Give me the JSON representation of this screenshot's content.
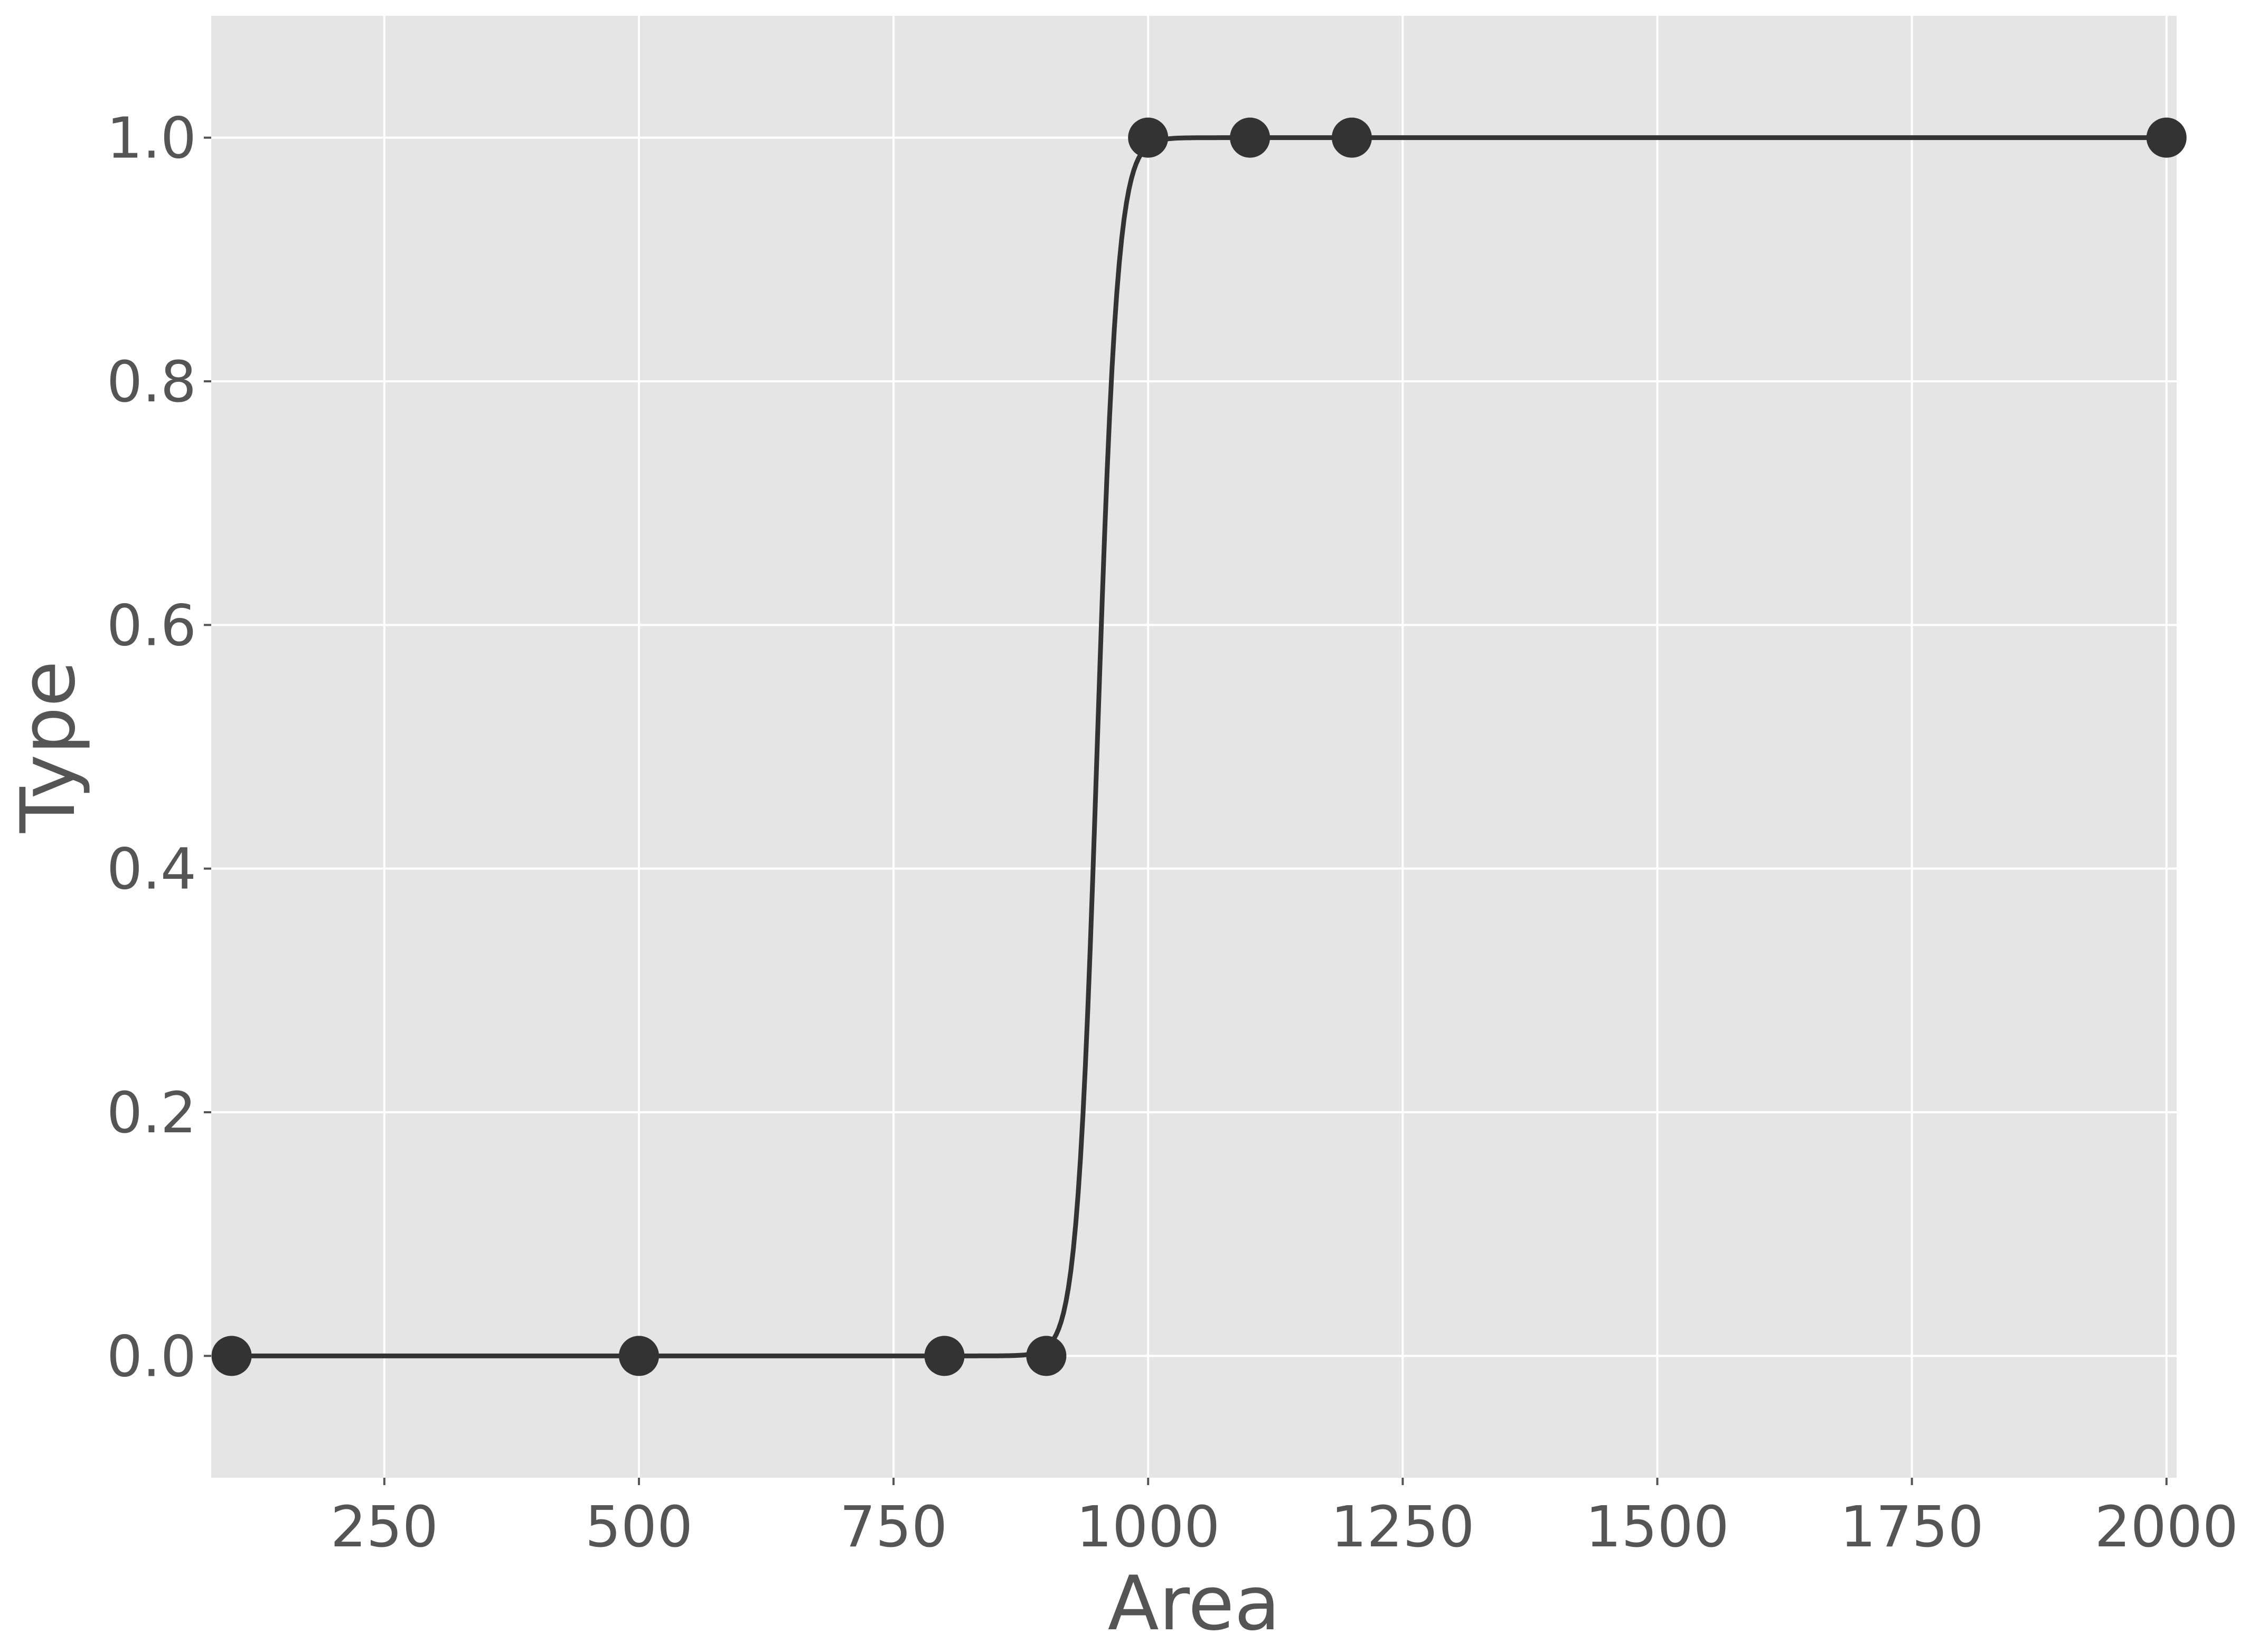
{
  "chart_data": {
    "type": "scatter",
    "title": "",
    "xlabel": "Area",
    "ylabel": "Type",
    "xlim": [
      80,
      2010
    ],
    "ylim": [
      -0.1,
      1.1
    ],
    "grid": true,
    "xticks": [
      250,
      500,
      750,
      1000,
      1250,
      1500,
      1750,
      2000
    ],
    "yticks": [
      0.0,
      0.2,
      0.4,
      0.6,
      0.8,
      1.0
    ],
    "points": {
      "x": [
        100,
        500,
        800,
        900,
        1000,
        1100,
        1200,
        2000
      ],
      "y": [
        0,
        0,
        0,
        0,
        1,
        1,
        1,
        1
      ]
    },
    "fit_curve": {
      "kind": "logistic",
      "midpoint": 950,
      "slope": 0.1,
      "x_range": [
        100,
        2000
      ]
    },
    "colors": {
      "plot_background": "#e5e5e5",
      "grid": "#ffffff",
      "marks": "#333333",
      "text": "#555555"
    }
  }
}
